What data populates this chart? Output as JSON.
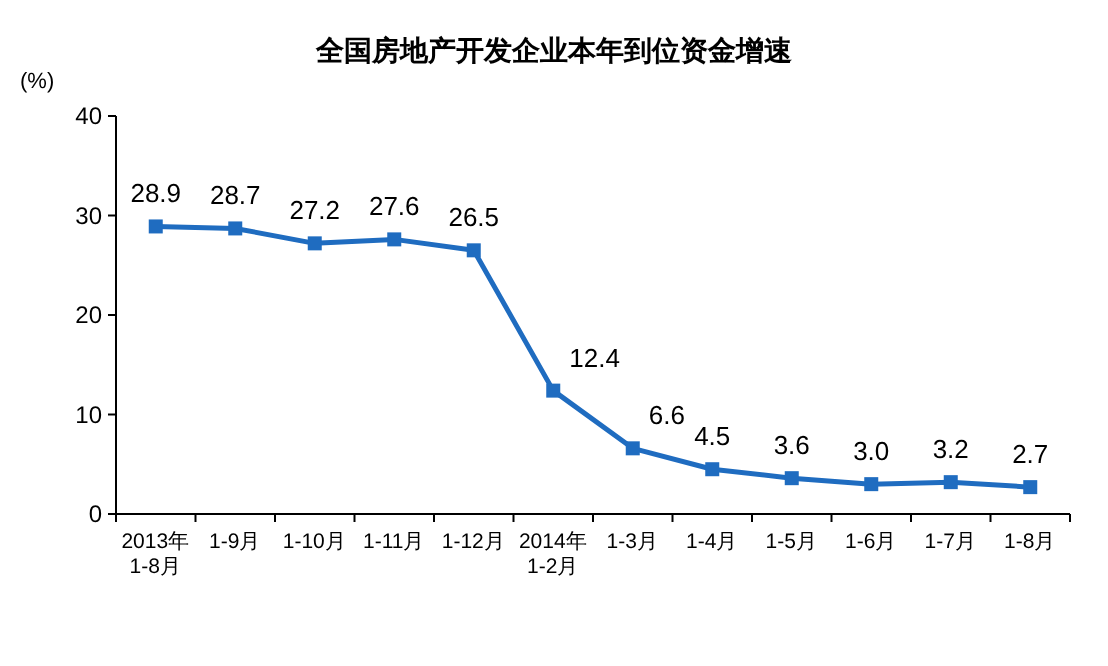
{
  "chart_data": {
    "type": "line",
    "title": "全国房地产开发企业本年到位资金增速",
    "ylabel": "(%)",
    "categories": [
      "2013年\n1-8月",
      "1-9月",
      "1-10月",
      "1-11月",
      "1-12月",
      "2014年\n1-2月",
      "1-3月",
      "1-4月",
      "1-5月",
      "1-6月",
      "1-7月",
      "1-8月"
    ],
    "series": [
      {
        "color": "#1f6cc0",
        "values": [
          28.9,
          28.7,
          27.2,
          27.6,
          26.5,
          12.4,
          6.6,
          4.5,
          3.6,
          3.0,
          3.2,
          2.7
        ],
        "value_labels": [
          "28.9",
          "28.7",
          "27.2",
          "27.6",
          "26.5",
          "12.4",
          "6.6",
          "4.5",
          "3.6",
          "3.0",
          "3.2",
          "2.7"
        ]
      }
    ],
    "ylim": [
      0,
      40
    ],
    "yticks": [
      0,
      10,
      20,
      30,
      40
    ],
    "marker": "square",
    "line_style": "solid"
  }
}
